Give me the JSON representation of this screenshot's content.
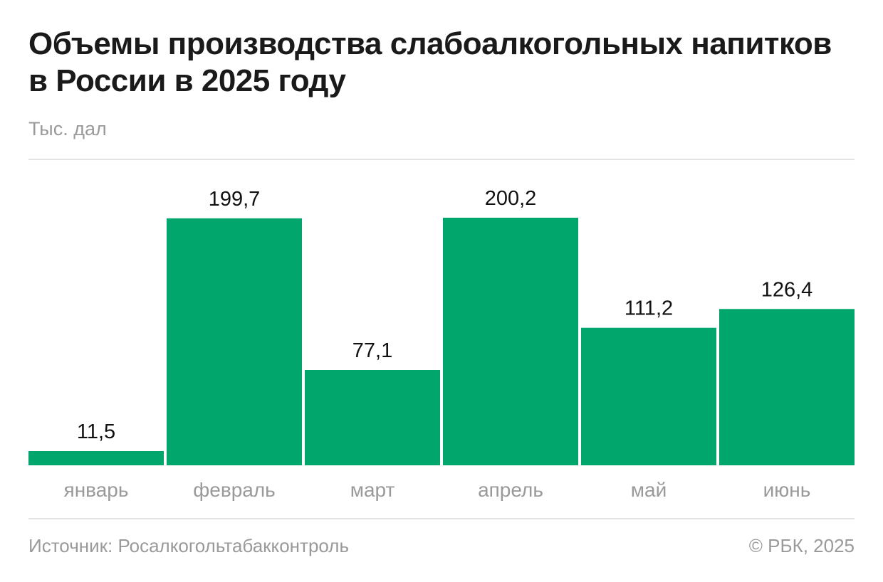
{
  "title": "Объемы производства слабоалкогольных напитков в России в 2025 году",
  "unit_label": "Тыс. дал",
  "source": "Источник: Росалкогольтабакконтроль",
  "copyright": "© РБК, 2025",
  "colors": {
    "bar": "#00a66c",
    "value_text": "#111111",
    "category_text": "#9a9a9a"
  },
  "chart_data": {
    "type": "bar",
    "categories": [
      "январь",
      "февраль",
      "март",
      "апрель",
      "май",
      "июнь"
    ],
    "values": [
      11.5,
      199.7,
      77.1,
      200.2,
      111.2,
      126.4
    ],
    "value_labels": [
      "11,5",
      "199,7",
      "77,1",
      "200,2",
      "111,2",
      "126,4"
    ],
    "title": "Объемы производства слабоалкогольных напитков в России в 2025 году",
    "ylabel": "Тыс. дал",
    "xlabel": "",
    "ylim": [
      0,
      200.2
    ],
    "grid": false,
    "legend": "none"
  }
}
